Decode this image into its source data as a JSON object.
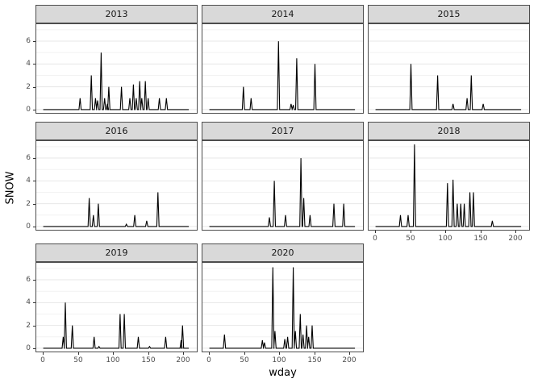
{
  "figure": {
    "x_axis_title": "wday",
    "y_axis_title": "SNOW",
    "colors": {
      "background": "#ffffff",
      "strip_fill": "#d9d9d9",
      "strip_border": "#4d4d4d",
      "panel_border": "#4d4d4d",
      "grid_major": "#e7e7e7",
      "grid_minor": "#f2f2f2",
      "line": "#000000",
      "axis_text": "#4d4d4d",
      "tick_mark": "#333333"
    }
  },
  "chart_data": {
    "type": "line",
    "title": "",
    "xlabel": "wday",
    "ylabel": "SNOW",
    "xlim": [
      0,
      210
    ],
    "ylim": [
      0,
      7.2
    ],
    "x_ticks": [
      0,
      50,
      100,
      150,
      200
    ],
    "y_ticks": [
      0,
      2,
      4,
      6
    ],
    "grid": "horizontal-only",
    "legend": "none",
    "facet_layout": {
      "ncol": 3,
      "nrow": 3,
      "empty_cells": [
        "row3-col3"
      ]
    },
    "facets": [
      {
        "label": "2013",
        "spikes": [
          [
            53,
            1
          ],
          [
            69,
            3
          ],
          [
            75,
            1
          ],
          [
            78,
            0.8
          ],
          [
            83,
            5
          ],
          [
            88,
            1
          ],
          [
            92,
            0.5
          ],
          [
            94,
            2
          ],
          [
            112,
            2
          ],
          [
            124,
            1
          ],
          [
            129,
            2.2
          ],
          [
            133,
            1
          ],
          [
            138,
            2.5
          ],
          [
            141,
            1
          ],
          [
            146,
            2.5
          ],
          [
            150,
            1
          ],
          [
            166,
            1
          ],
          [
            176,
            1
          ]
        ]
      },
      {
        "label": "2014",
        "spikes": [
          [
            49,
            2
          ],
          [
            60,
            1
          ],
          [
            99,
            6
          ],
          [
            117,
            0.5
          ],
          [
            120,
            0.4
          ],
          [
            125,
            4.5
          ],
          [
            151,
            4
          ]
        ]
      },
      {
        "label": "2015",
        "spikes": [
          [
            51,
            4
          ],
          [
            89,
            3
          ],
          [
            111,
            0.5
          ],
          [
            131,
            1
          ],
          [
            137,
            3
          ],
          [
            154,
            0.5
          ]
        ]
      },
      {
        "label": "2016",
        "spikes": [
          [
            66,
            2.5
          ],
          [
            72,
            1
          ],
          [
            79,
            2
          ],
          [
            119,
            0.2
          ],
          [
            131,
            1
          ],
          [
            148,
            0.5
          ],
          [
            164,
            3
          ]
        ]
      },
      {
        "label": "2017",
        "spikes": [
          [
            86,
            0.8
          ],
          [
            93,
            4
          ],
          [
            109,
            1
          ],
          [
            131,
            6
          ],
          [
            135,
            2.5
          ],
          [
            144,
            1
          ],
          [
            178,
            2
          ],
          [
            192,
            2
          ]
        ]
      },
      {
        "label": "2018",
        "spikes": [
          [
            36,
            1
          ],
          [
            47,
            1
          ],
          [
            56,
            7.2
          ],
          [
            103,
            3.8
          ],
          [
            111,
            4.1
          ],
          [
            117,
            2
          ],
          [
            122,
            2
          ],
          [
            127,
            2
          ],
          [
            135,
            3
          ],
          [
            140,
            3
          ],
          [
            167,
            0.5
          ]
        ]
      },
      {
        "label": "2019",
        "spikes": [
          [
            29,
            1
          ],
          [
            32,
            4
          ],
          [
            42,
            2
          ],
          [
            73,
            1
          ],
          [
            80,
            0.15
          ],
          [
            110,
            3
          ],
          [
            116,
            3
          ],
          [
            136,
            1
          ],
          [
            152,
            0.15
          ],
          [
            175,
            1
          ],
          [
            197,
            0.7
          ],
          [
            199,
            2
          ]
        ]
      },
      {
        "label": "2020",
        "spikes": [
          [
            22,
            1.2
          ],
          [
            76,
            0.7
          ],
          [
            79,
            0.5
          ],
          [
            91,
            7.1
          ],
          [
            94,
            1.5
          ],
          [
            108,
            0.8
          ],
          [
            112,
            1
          ],
          [
            120,
            7.1
          ],
          [
            123,
            1.5
          ],
          [
            130,
            3
          ],
          [
            134,
            1.2
          ],
          [
            139,
            2
          ],
          [
            142,
            1
          ],
          [
            147,
            2
          ]
        ]
      }
    ]
  }
}
